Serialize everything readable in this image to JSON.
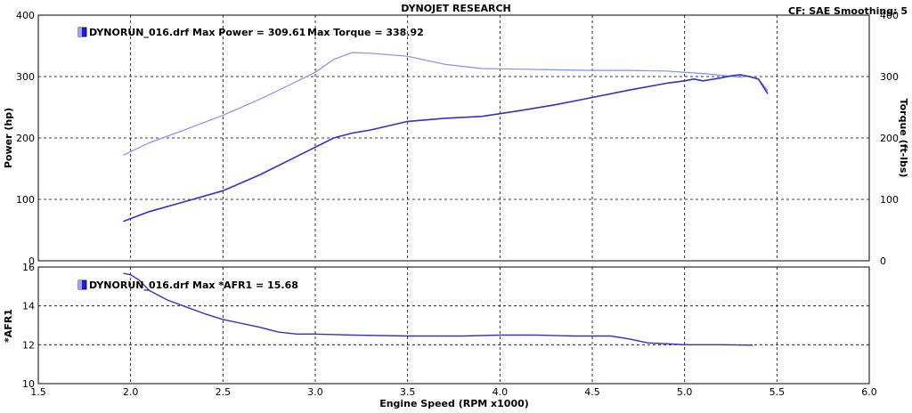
{
  "header": {
    "title": "DYNOJET RESEARCH",
    "cf_text": "CF: SAE   Smoothing: 5"
  },
  "colors": {
    "power": "#2f2fd6",
    "torque": "#7f8ff4",
    "afr": "#2f2fd6",
    "grid": "#000000",
    "legend_icon": "#2020e0"
  },
  "icons": {
    "legend": "run-file-icon"
  },
  "chart_data": [
    {
      "type": "line",
      "title": "",
      "legend": {
        "power_text": "DYNORUN_016.drf Max Power = 309.61",
        "torque_text": "Max Torque = 338.92",
        "placement": "top-left"
      },
      "xlabel": "Engine Speed (RPM x1000)",
      "ylabel": "Power (hp)",
      "y2label": "Torque (ft-lbs)",
      "xlim": [
        1.5,
        6.0
      ],
      "ylim": [
        0,
        400
      ],
      "y2lim": [
        0,
        400
      ],
      "xticks": [
        "1.5",
        "2.0",
        "2.5",
        "3.0",
        "3.5",
        "4.0",
        "4.5",
        "5.0",
        "5.5",
        "6.0"
      ],
      "yticks": [
        "0",
        "100",
        "200",
        "300",
        "400"
      ],
      "grid": true,
      "series": [
        {
          "name": "Power",
          "axis": "left",
          "x": [
            1.96,
            2.1,
            2.3,
            2.5,
            2.7,
            2.9,
            3.1,
            3.2,
            3.3,
            3.5,
            3.7,
            3.9,
            4.1,
            4.3,
            4.5,
            4.7,
            4.9,
            5.0,
            5.05,
            5.1,
            5.2,
            5.25,
            5.3,
            5.35,
            5.4,
            5.45
          ],
          "values": [
            64,
            80,
            97,
            114,
            140,
            170,
            200,
            208,
            213,
            227,
            232,
            235,
            244,
            254,
            266,
            278,
            289,
            293,
            296,
            293,
            298,
            301,
            303,
            300,
            296,
            272
          ]
        },
        {
          "name": "Torque",
          "axis": "right",
          "x": [
            1.96,
            2.1,
            2.3,
            2.5,
            2.7,
            2.9,
            3.0,
            3.1,
            3.2,
            3.3,
            3.5,
            3.7,
            3.9,
            4.1,
            4.3,
            4.5,
            4.7,
            4.9,
            5.0,
            5.1,
            5.2,
            5.3,
            5.35,
            5.4,
            5.45
          ],
          "values": [
            172,
            192,
            214,
            237,
            263,
            292,
            307,
            328,
            339,
            338,
            333,
            320,
            313,
            312,
            311,
            310,
            310,
            309,
            307,
            305,
            302,
            299,
            301,
            296,
            277
          ]
        }
      ]
    },
    {
      "type": "line",
      "title": "",
      "legend": {
        "text": "DYNORUN_016.drf Max *AFR1 = 15.68",
        "placement": "top-left"
      },
      "xlabel": "Engine Speed (RPM x1000)",
      "ylabel": "*AFR1",
      "xlim": [
        1.5,
        6.0
      ],
      "ylim": [
        10,
        16
      ],
      "xticks": [
        "1.5",
        "2.0",
        "2.5",
        "3.0",
        "3.5",
        "4.0",
        "4.5",
        "5.0",
        "5.5",
        "6.0"
      ],
      "yticks": [
        "10",
        "12",
        "14",
        "16"
      ],
      "grid": true,
      "series": [
        {
          "name": "*AFR1",
          "x": [
            1.96,
            2.0,
            2.05,
            2.1,
            2.2,
            2.3,
            2.4,
            2.5,
            2.7,
            2.8,
            2.9,
            3.0,
            3.2,
            3.5,
            3.8,
            4.0,
            4.2,
            4.4,
            4.6,
            4.7,
            4.8,
            4.9,
            5.0,
            5.2,
            5.37
          ],
          "values": [
            15.68,
            15.6,
            15.3,
            14.8,
            14.3,
            13.95,
            13.6,
            13.3,
            12.9,
            12.65,
            12.55,
            12.55,
            12.5,
            12.45,
            12.45,
            12.5,
            12.5,
            12.45,
            12.45,
            12.3,
            12.1,
            12.05,
            12.0,
            12.0,
            11.98
          ]
        }
      ]
    }
  ]
}
